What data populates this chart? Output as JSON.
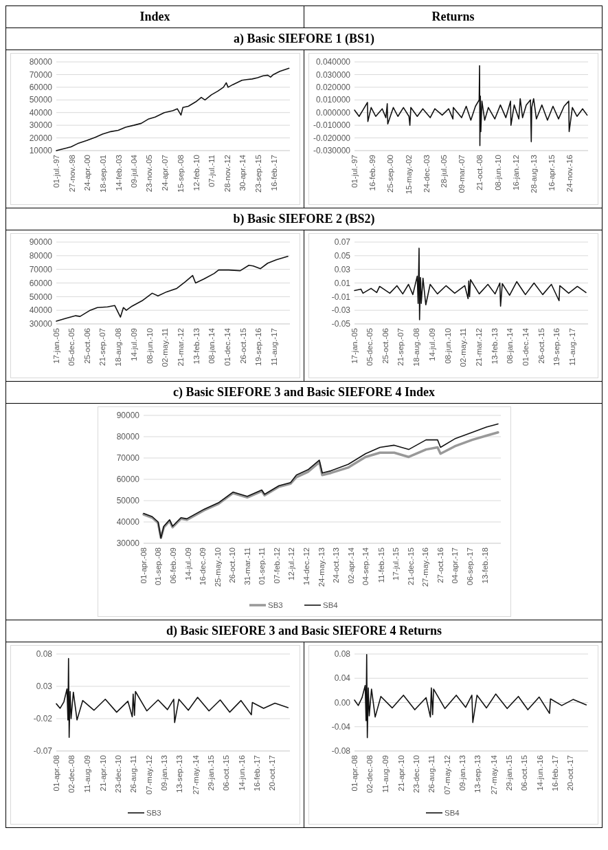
{
  "chart_data": [
    {
      "type": "line",
      "title": "a) Basic SIEFORE 1 (BS1)",
      "annotations": [
        "Index"
      ],
      "xlim": [
        "1997-07-01",
        "2018-08-01"
      ],
      "ylim": [
        10000,
        80000
      ],
      "yticks": [
        10000,
        20000,
        30000,
        40000,
        50000,
        60000,
        70000,
        80000
      ],
      "grid": "y",
      "xticks": [
        {
          "value": "1997-07-01",
          "label": "01-jul.-97"
        },
        {
          "value": "1998-11-27",
          "label": "27-nov.-98"
        },
        {
          "value": "2000-04-24",
          "label": "24-apr.-00"
        },
        {
          "value": "2001-09-18",
          "label": "18-sep.-01"
        },
        {
          "value": "2003-02-14",
          "label": "14-feb.-03"
        },
        {
          "value": "2004-07-09",
          "label": "09-jul.-04"
        },
        {
          "value": "2005-11-23",
          "label": "23-nov.-05"
        },
        {
          "value": "2007-04-24",
          "label": "24-apr.-07"
        },
        {
          "value": "2008-09-15",
          "label": "15-sep.-08"
        },
        {
          "value": "2010-02-12",
          "label": "12-feb.-10"
        },
        {
          "value": "2011-07-07",
          "label": "07-jul.-11"
        },
        {
          "value": "2012-11-28",
          "label": "28-nov.-12"
        },
        {
          "value": "2014-04-30",
          "label": "30-apr.-14"
        },
        {
          "value": "2015-09-23",
          "label": "23-sep.-15"
        },
        {
          "value": "2017-02-16",
          "label": "16-feb.-17"
        }
      ],
      "x": [
        "1997-07-01",
        "1998-06",
        "1998-11",
        "1999-06",
        "2000-04",
        "2001-01",
        "2001-09",
        "2002-06",
        "2003-02",
        "2003-10",
        "2004-07",
        "2005-03",
        "2005-11",
        "2006-06",
        "2007-04",
        "2008-01",
        "2008-06",
        "2008-10",
        "2008-12",
        "2009-06",
        "2010-02",
        "2010-08",
        "2010-12",
        "2011-07",
        "2012-02",
        "2012-08",
        "2012-11",
        "2013-01",
        "2013-06",
        "2014-04",
        "2014-09",
        "2015-03",
        "2015-09",
        "2016-03",
        "2016-08",
        "2016-11",
        "2017-02",
        "2017-09",
        "2018-07"
      ],
      "series": [
        {
          "color": "#111111",
          "values": [
            10000,
            12000,
            13000,
            15500,
            18000,
            20500,
            23000,
            25000,
            26000,
            28500,
            30000,
            31500,
            35000,
            36500,
            40000,
            41500,
            43000,
            38000,
            44000,
            45000,
            48500,
            52000,
            50000,
            54000,
            57000,
            60000,
            63500,
            60000,
            62000,
            65500,
            66000,
            66500,
            67500,
            69000,
            69500,
            68000,
            70000,
            72500,
            75000
          ]
        }
      ]
    },
    {
      "type": "line",
      "annotations": [
        "Returns"
      ],
      "xlim": [
        "1997-07-01",
        "2018-08-01"
      ],
      "ylim": [
        -0.03,
        0.04
      ],
      "grid": "y",
      "yticks": [
        {
          "value": -0.03,
          "label": "-0.030000"
        },
        {
          "value": -0.02,
          "label": "-0.020000"
        },
        {
          "value": -0.01,
          "label": "-0.010000"
        },
        {
          "value": 0,
          "label": "0.000000"
        },
        {
          "value": 0.01,
          "label": "0.010000"
        },
        {
          "value": 0.02,
          "label": "0.020000"
        },
        {
          "value": 0.03,
          "label": "0.030000"
        },
        {
          "value": 0.04,
          "label": "0.040000"
        }
      ],
      "xticks": [
        {
          "value": "1997-07-01",
          "label": "01-jul.-97"
        },
        {
          "value": "1999-02-16",
          "label": "16-feb.-99"
        },
        {
          "value": "2000-09-25",
          "label": "25-sep.-00"
        },
        {
          "value": "2002-05-15",
          "label": "15-may.-02"
        },
        {
          "value": "2003-12-24",
          "label": "24-dec.-03"
        },
        {
          "value": "2005-07-28",
          "label": "28-jul.-05"
        },
        {
          "value": "2007-03-09",
          "label": "09-mar.-07"
        },
        {
          "value": "2008-10-21",
          "label": "21-oct.-08"
        },
        {
          "value": "2010-06-08",
          "label": "08-jun.-10"
        },
        {
          "value": "2012-01-16",
          "label": "16-jan.-12"
        },
        {
          "value": "2013-08-28",
          "label": "28-aug.-13"
        },
        {
          "value": "2015-04-16",
          "label": "16-apr.-15"
        },
        {
          "value": "2016-11-24",
          "label": "24-nov.-16"
        }
      ],
      "x": [
        "1997-07-01",
        "1997-12",
        "1998-05",
        "1998-09-01",
        "1998-09-15",
        "1999-01",
        "1999-06",
        "2000-01",
        "2000-05",
        "2000-06-15",
        "2000-07-01",
        "2001-01",
        "2001-06",
        "2001-12",
        "2002-06-01",
        "2002-07-01",
        "2002-08-01",
        "2003-03",
        "2003-09",
        "2004-05",
        "2004-10",
        "2005-06",
        "2006-01",
        "2006-05-20",
        "2006-06",
        "2007-03",
        "2007-08",
        "2008-01",
        "2008-06",
        "2008-10-01",
        "2008-10-15",
        "2008-10-25",
        "2008-11-10",
        "2008-11-25",
        "2009-01",
        "2009-04",
        "2009-08",
        "2010-03",
        "2010-09",
        "2011-03",
        "2011-08-01",
        "2011-08-15",
        "2011-12",
        "2012-05",
        "2012-06-15",
        "2012-09",
        "2013-01",
        "2013-05-20",
        "2013-06-15",
        "2013-07",
        "2013-09-01",
        "2013-12",
        "2014-06",
        "2014-12",
        "2015-06",
        "2015-12",
        "2016-06",
        "2016-11-01",
        "2016-11-15",
        "2017-03",
        "2017-08",
        "2018-02",
        "2018-07"
      ],
      "series": [
        {
          "color": "#111111",
          "values": [
            0.002,
            -0.003,
            0.003,
            0.008,
            -0.007,
            0.004,
            -0.003,
            0.003,
            -0.004,
            0.007,
            -0.009,
            0.004,
            -0.003,
            0.004,
            -0.003,
            -0.01,
            0.004,
            -0.003,
            0.003,
            -0.004,
            0.003,
            -0.002,
            0.003,
            -0.005,
            0.004,
            -0.004,
            0.005,
            -0.006,
            0.005,
            0.01,
            0.037,
            -0.026,
            0.013,
            -0.015,
            0.009,
            -0.006,
            0.004,
            -0.005,
            0.006,
            -0.004,
            0.009,
            -0.01,
            0.006,
            -0.005,
            0.011,
            -0.004,
            0.006,
            0.01,
            -0.023,
            0.004,
            0.011,
            -0.005,
            0.006,
            -0.006,
            0.005,
            -0.005,
            0.005,
            0.009,
            -0.015,
            0.004,
            -0.003,
            0.003,
            -0.002
          ]
        }
      ]
    },
    {
      "type": "line",
      "title": "b) Basic SIEFORE 2 (BS2)",
      "xlim": [
        "2005-01-17",
        "2018-07-15"
      ],
      "ylim": [
        30000,
        90000
      ],
      "yticks": [
        30000,
        40000,
        50000,
        60000,
        70000,
        80000,
        90000
      ],
      "grid": "y",
      "xticks": [
        {
          "value": "2005-01-17",
          "label": "17-jan.-05"
        },
        {
          "value": "2005-12-05",
          "label": "05-dec.-05"
        },
        {
          "value": "2006-10-25",
          "label": "25-oct.-06"
        },
        {
          "value": "2007-09-21",
          "label": "21-sep.-07"
        },
        {
          "value": "2008-08-18",
          "label": "18-aug.-08"
        },
        {
          "value": "2009-07-14",
          "label": "14-jul.-09"
        },
        {
          "value": "2010-06-08",
          "label": "08-jun.-10"
        },
        {
          "value": "2011-05-02",
          "label": "02-may.-11"
        },
        {
          "value": "2012-03-21",
          "label": "21-mar.-12"
        },
        {
          "value": "2013-02-13",
          "label": "13-feb.-13"
        },
        {
          "value": "2014-01-08",
          "label": "08-jan.-14"
        },
        {
          "value": "2014-12-01",
          "label": "01-dec.-14"
        },
        {
          "value": "2015-10-26",
          "label": "26-oct.-15"
        },
        {
          "value": "2016-09-19",
          "label": "19-sep.-16"
        },
        {
          "value": "2017-08-11",
          "label": "11-aug.-17"
        }
      ],
      "x": [
        "2005-01-17",
        "2005-08",
        "2006-03",
        "2006-06",
        "2007-01",
        "2007-06",
        "2008-01",
        "2008-06",
        "2008-10",
        "2008-12",
        "2009-02",
        "2009-06",
        "2010-01",
        "2010-08",
        "2010-12",
        "2011-06",
        "2012-01",
        "2012-07",
        "2012-12",
        "2013-02",
        "2013-08",
        "2014-03",
        "2014-06",
        "2015-01",
        "2015-09",
        "2016-03",
        "2016-06",
        "2016-11",
        "2017-04",
        "2017-10",
        "2018-06"
      ],
      "series": [
        {
          "color": "#111111",
          "values": [
            32000,
            34000,
            36000,
            35500,
            40000,
            42000,
            42500,
            43500,
            35000,
            42000,
            40000,
            43000,
            47000,
            52500,
            50500,
            53500,
            56000,
            61000,
            65500,
            60000,
            63000,
            67000,
            69500,
            69500,
            69000,
            73000,
            72500,
            70500,
            74500,
            77000,
            79500
          ]
        }
      ]
    },
    {
      "type": "line",
      "xlim": [
        "2005-01-17",
        "2018-07-15"
      ],
      "ylim": [
        -0.05,
        0.07
      ],
      "yticks": [
        -0.05,
        -0.03,
        -0.01,
        0.01,
        0.03,
        0.05,
        0.07
      ],
      "grid": "y",
      "xticks": [
        {
          "value": "2005-01-17",
          "label": "17-jan.-05"
        },
        {
          "value": "2005-12-05",
          "label": "05-dec.-05"
        },
        {
          "value": "2006-10-25",
          "label": "25-oct.-06"
        },
        {
          "value": "2007-09-21",
          "label": "21-sep.-07"
        },
        {
          "value": "2008-08-18",
          "label": "18-aug.-08"
        },
        {
          "value": "2009-07-14",
          "label": "14-jul.-09"
        },
        {
          "value": "2010-06-08",
          "label": "08-jun.-10"
        },
        {
          "value": "2011-05-02",
          "label": "02-may.-11"
        },
        {
          "value": "2012-03-21",
          "label": "21-mar.-12"
        },
        {
          "value": "2013-02-13",
          "label": "13-feb.-13"
        },
        {
          "value": "2014-01-08",
          "label": "08-jan.-14"
        },
        {
          "value": "2014-12-01",
          "label": "01-dec.-14"
        },
        {
          "value": "2015-10-26",
          "label": "26-oct.-15"
        },
        {
          "value": "2016-09-19",
          "label": "19-sep.-16"
        },
        {
          "value": "2017-08-11",
          "label": "11-aug.-17"
        }
      ],
      "x": [
        "2005-01-17",
        "2005-06",
        "2005-07-15",
        "2006-01",
        "2006-05",
        "2006-07",
        "2007-02",
        "2007-07",
        "2007-11",
        "2008-03",
        "2008-06",
        "2008-09-01",
        "2008-09-20",
        "2008-10-10",
        "2008-10-20",
        "2008-11-10",
        "2008-11-25",
        "2009-01",
        "2009-03",
        "2009-06",
        "2009-11",
        "2010-05",
        "2010-11",
        "2011-06",
        "2011-08-10",
        "2011-08-25",
        "2011-09-10",
        "2011-10",
        "2012-04",
        "2012-10",
        "2013-03",
        "2013-06-10",
        "2013-06-25",
        "2013-08",
        "2014-01",
        "2014-06",
        "2014-12",
        "2015-06",
        "2015-12",
        "2016-06",
        "2016-11-10",
        "2016-11-25",
        "2017-06",
        "2017-12",
        "2018-06"
      ],
      "series": [
        {
          "color": "#111111",
          "values": [
            -0.001,
            0.001,
            -0.005,
            0.002,
            -0.004,
            0.005,
            -0.005,
            0.006,
            -0.006,
            0.008,
            -0.007,
            0.02,
            -0.02,
            0.061,
            -0.044,
            0.018,
            -0.02,
            0.017,
            -0.022,
            0.008,
            -0.006,
            0.006,
            -0.005,
            0.006,
            -0.013,
            0.013,
            -0.01,
            0.015,
            -0.006,
            0.008,
            -0.006,
            0.01,
            -0.024,
            0.009,
            -0.008,
            0.012,
            -0.007,
            0.01,
            -0.007,
            0.008,
            -0.016,
            0.006,
            -0.005,
            0.005,
            -0.004
          ]
        }
      ]
    },
    {
      "type": "line",
      "title": "c) Basic SIEFORE 3 and Basic SIEFORE 4 Index",
      "xlim": [
        "2008-04-01",
        "2018-07-31"
      ],
      "ylim": [
        30000,
        90000
      ],
      "yticks": [
        30000,
        40000,
        50000,
        60000,
        70000,
        80000,
        90000
      ],
      "grid": "y",
      "legend": "bottom",
      "xticks": [
        {
          "value": "2008-04-01",
          "label": "01-apr.-08"
        },
        {
          "value": "2008-09-01",
          "label": "01-sep.-08"
        },
        {
          "value": "2009-02-06",
          "label": "06-feb.-09"
        },
        {
          "value": "2009-07-14",
          "label": "14-jul.-09"
        },
        {
          "value": "2009-12-16",
          "label": "16-dec.-09"
        },
        {
          "value": "2010-05-25",
          "label": "25-may.-10"
        },
        {
          "value": "2010-10-26",
          "label": "26-oct.-10"
        },
        {
          "value": "2011-03-31",
          "label": "31-mar.-11"
        },
        {
          "value": "2011-09-01",
          "label": "01-sep.-11"
        },
        {
          "value": "2012-02-07",
          "label": "07-feb.-12"
        },
        {
          "value": "2012-07-12",
          "label": "12-jul.-12"
        },
        {
          "value": "2012-12-14",
          "label": "14-dec.-12"
        },
        {
          "value": "2013-05-24",
          "label": "24-may.-13"
        },
        {
          "value": "2013-10-24",
          "label": "24-oct.-13"
        },
        {
          "value": "2014-04-02",
          "label": "02-apr.-14"
        },
        {
          "value": "2014-09-04",
          "label": "04-sep.-14"
        },
        {
          "value": "2015-02-11",
          "label": "11-feb.-15"
        },
        {
          "value": "2015-07-17",
          "label": "17-jul.-15"
        },
        {
          "value": "2015-12-21",
          "label": "21-dec.-15"
        },
        {
          "value": "2016-05-27",
          "label": "27-may.-16"
        },
        {
          "value": "2016-10-27",
          "label": "27-oct.-16"
        },
        {
          "value": "2017-04-04",
          "label": "04-apr.-17"
        },
        {
          "value": "2017-09-06",
          "label": "06-sep.-17"
        },
        {
          "value": "2018-02-13",
          "label": "13-feb.-18"
        }
      ],
      "x": [
        "2008-04-01",
        "2008-07",
        "2008-09",
        "2008-10",
        "2008-11",
        "2009-01",
        "2009-02",
        "2009-05",
        "2009-07",
        "2010-01",
        "2010-06",
        "2010-11",
        "2011-04",
        "2011-09",
        "2011-10",
        "2012-03",
        "2012-07",
        "2012-09",
        "2013-01",
        "2013-05",
        "2013-06",
        "2013-09",
        "2014-03",
        "2014-09",
        "2015-02",
        "2015-07",
        "2015-12",
        "2016-06",
        "2016-10",
        "2016-11",
        "2017-04",
        "2017-10",
        "2018-03",
        "2018-07"
      ],
      "series": [
        {
          "name": "SB3",
          "color": "#999999",
          "values": [
            43500,
            42000,
            39500,
            32500,
            37500,
            40500,
            37500,
            41500,
            41000,
            45500,
            48500,
            53500,
            51500,
            54500,
            52500,
            56500,
            58000,
            61000,
            63500,
            68000,
            62000,
            63000,
            65500,
            70500,
            72500,
            72500,
            70500,
            74000,
            75000,
            72000,
            75500,
            78500,
            80500,
            82000
          ]
        },
        {
          "name": "SB4",
          "color": "#111111",
          "values": [
            44000,
            42500,
            40000,
            32500,
            38000,
            41000,
            38000,
            42000,
            41500,
            46000,
            49000,
            54000,
            52000,
            55000,
            53000,
            57000,
            58500,
            62000,
            64500,
            69000,
            63000,
            64000,
            67000,
            72000,
            75000,
            76000,
            74000,
            78500,
            78500,
            75000,
            79000,
            82000,
            84500,
            86000
          ]
        }
      ]
    },
    {
      "type": "line",
      "title": "d) Basic SIEFORE 3 and Basic SIEFORE 4 Returns",
      "xlim": [
        "2008-04-01",
        "2018-07-31"
      ],
      "ylim": [
        -0.07,
        0.08
      ],
      "yticks": [
        -0.07,
        -0.02,
        0.03,
        0.08
      ],
      "grid": "y",
      "legend": "bottom",
      "xticks": [
        {
          "value": "2008-04-01",
          "label": "01-apr.-08"
        },
        {
          "value": "2008-12-02",
          "label": "02-dec.-08"
        },
        {
          "value": "2009-08-11",
          "label": "11-aug.-09"
        },
        {
          "value": "2010-04-21",
          "label": "21-apr.-10"
        },
        {
          "value": "2010-12-23",
          "label": "23-dec.-10"
        },
        {
          "value": "2011-08-26",
          "label": "26-aug.-11"
        },
        {
          "value": "2012-05-07",
          "label": "07-may.-12"
        },
        {
          "value": "2013-01-09",
          "label": "09-jan.-13"
        },
        {
          "value": "2013-09-13",
          "label": "13-sep.-13"
        },
        {
          "value": "2014-05-27",
          "label": "27-may.-14"
        },
        {
          "value": "2015-01-29",
          "label": "29-jan.-15"
        },
        {
          "value": "2015-10-06",
          "label": "06-oct.-15"
        },
        {
          "value": "2016-06-14",
          "label": "14-jun.-16"
        },
        {
          "value": "2017-02-16",
          "label": "16-feb.-17"
        },
        {
          "value": "2017-10-20",
          "label": "20-oct.-17"
        }
      ],
      "x": [
        "2008-04-01",
        "2008-06",
        "2008-08",
        "2008-09-20",
        "2008-10-05",
        "2008-10-15",
        "2008-10-25",
        "2008-11-10",
        "2008-11-25",
        "2009-01",
        "2009-03",
        "2009-06",
        "2009-12",
        "2010-06",
        "2010-12",
        "2011-06",
        "2011-08-10",
        "2011-08-25",
        "2011-09-15",
        "2011-10",
        "2012-04",
        "2012-10",
        "2013-03",
        "2013-06-10",
        "2013-06-25",
        "2013-09",
        "2014-02",
        "2014-07",
        "2015-01",
        "2015-07",
        "2015-12",
        "2016-06",
        "2016-11-15",
        "2016-12",
        "2017-06",
        "2017-12",
        "2018-07"
      ],
      "series": [
        {
          "name": "SB3",
          "color": "#111111",
          "values": [
            0.003,
            -0.004,
            0.006,
            0.026,
            -0.022,
            0.073,
            -0.049,
            0.022,
            -0.02,
            0.021,
            -0.022,
            0.008,
            -0.007,
            0.01,
            -0.01,
            0.007,
            -0.017,
            0.018,
            -0.015,
            0.022,
            -0.008,
            0.009,
            -0.006,
            0.01,
            -0.026,
            0.01,
            -0.007,
            0.013,
            -0.008,
            0.009,
            -0.01,
            0.008,
            -0.014,
            0.005,
            -0.004,
            0.004,
            -0.003
          ]
        }
      ]
    },
    {
      "type": "line",
      "xlim": [
        "2008-04-01",
        "2018-07-31"
      ],
      "ylim": [
        -0.08,
        0.08
      ],
      "grid": "y",
      "legend": "bottom",
      "yticks": [
        {
          "value": -0.08,
          "label": "-0.08"
        },
        {
          "value": -0.04,
          "label": "-0.04"
        },
        {
          "value": 0,
          "label": "0.00"
        },
        {
          "value": 0.04,
          "label": "0.04"
        },
        {
          "value": 0.08,
          "label": "0.08"
        }
      ],
      "xticks": [
        {
          "value": "2008-04-01",
          "label": "01-apr.-08"
        },
        {
          "value": "2008-12-02",
          "label": "02-dec.-08"
        },
        {
          "value": "2009-08-11",
          "label": "11-aug.-09"
        },
        {
          "value": "2010-04-21",
          "label": "21-apr.-10"
        },
        {
          "value": "2010-12-23",
          "label": "23-dec.-10"
        },
        {
          "value": "2011-08-26",
          "label": "26-aug.-11"
        },
        {
          "value": "2012-05-07",
          "label": "07-may.-12"
        },
        {
          "value": "2013-01-09",
          "label": "09-jan.-13"
        },
        {
          "value": "2013-09-13",
          "label": "13-sep.-13"
        },
        {
          "value": "2014-05-27",
          "label": "27-may.-14"
        },
        {
          "value": "2015-01-29",
          "label": "29-jan.-15"
        },
        {
          "value": "2015-10-06",
          "label": "06-oct.-15"
        },
        {
          "value": "2016-06-14",
          "label": "14-jun.-16"
        },
        {
          "value": "2017-02-16",
          "label": "16-feb.-17"
        },
        {
          "value": "2017-10-20",
          "label": "20-oct.-17"
        }
      ],
      "x": [
        "2008-04-01",
        "2008-06",
        "2008-08",
        "2008-09-20",
        "2008-10-05",
        "2008-10-15",
        "2008-10-25",
        "2008-11-10",
        "2008-11-25",
        "2009-01",
        "2009-03",
        "2009-06",
        "2009-12",
        "2010-06",
        "2010-12",
        "2011-06",
        "2011-08-10",
        "2011-08-25",
        "2011-09-15",
        "2011-10",
        "2012-04",
        "2012-10",
        "2013-03",
        "2013-06-10",
        "2013-06-25",
        "2013-09",
        "2014-02",
        "2014-07",
        "2015-01",
        "2015-07",
        "2015-12",
        "2016-06",
        "2016-11-15",
        "2016-12",
        "2017-06",
        "2017-12",
        "2018-07"
      ],
      "series": [
        {
          "name": "SB4",
          "color": "#111111",
          "values": [
            0.004,
            -0.005,
            0.008,
            0.028,
            -0.03,
            0.079,
            -0.058,
            0.024,
            -0.022,
            0.022,
            -0.024,
            0.01,
            -0.009,
            0.012,
            -0.012,
            0.008,
            -0.024,
            0.024,
            -0.02,
            0.022,
            -0.01,
            0.012,
            -0.008,
            0.012,
            -0.033,
            0.012,
            -0.009,
            0.014,
            -0.01,
            0.01,
            -0.012,
            0.009,
            -0.018,
            0.006,
            -0.005,
            0.005,
            -0.004
          ]
        }
      ]
    }
  ]
}
